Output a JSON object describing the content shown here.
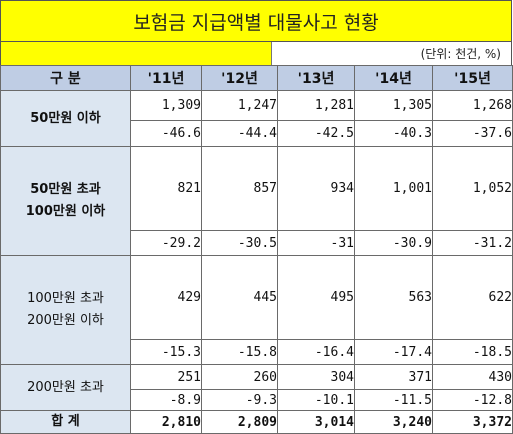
{
  "title": "보험금 지급액별 대물사고 현황",
  "unit": "(단위: 천건, %)",
  "header": {
    "category": "구 분",
    "years": [
      "'11년",
      "'12년",
      "'13년",
      "'14년",
      "'15년"
    ]
  },
  "groups": [
    {
      "label": "50만원 이하",
      "counts": [
        "1,309",
        "1,247",
        "1,281",
        "1,305",
        "1,268"
      ],
      "rates": [
        "-46.6",
        "-44.4",
        "-42.5",
        "-40.3",
        "-37.6"
      ]
    },
    {
      "label_line1": "50만원 초과",
      "label_line2": "100만원 이하",
      "counts": [
        "821",
        "857",
        "934",
        "1,001",
        "1,052"
      ],
      "rates": [
        "-29.2",
        "-30.5",
        "-31",
        "-30.9",
        "-31.2"
      ]
    },
    {
      "label_line1": "100만원 초과",
      "label_line2": "200만원 이하",
      "counts": [
        "429",
        "445",
        "495",
        "563",
        "622"
      ],
      "rates": [
        "-15.3",
        "-15.8",
        "-16.4",
        "-17.4",
        "-18.5"
      ]
    },
    {
      "label": "200만원 초과",
      "counts": [
        "251",
        "260",
        "304",
        "371",
        "430"
      ],
      "rates": [
        "-8.9",
        "-9.3",
        "-10.1",
        "-11.5",
        "-12.8"
      ]
    }
  ],
  "total": {
    "label": "합 계",
    "values": [
      "2,810",
      "2,809",
      "3,014",
      "3,240",
      "3,372"
    ]
  },
  "colors": {
    "title_bg": "#ffff00",
    "header_bg": "#bfcde4",
    "label_bg": "#dce6f1",
    "border": "#6a6a6a"
  }
}
